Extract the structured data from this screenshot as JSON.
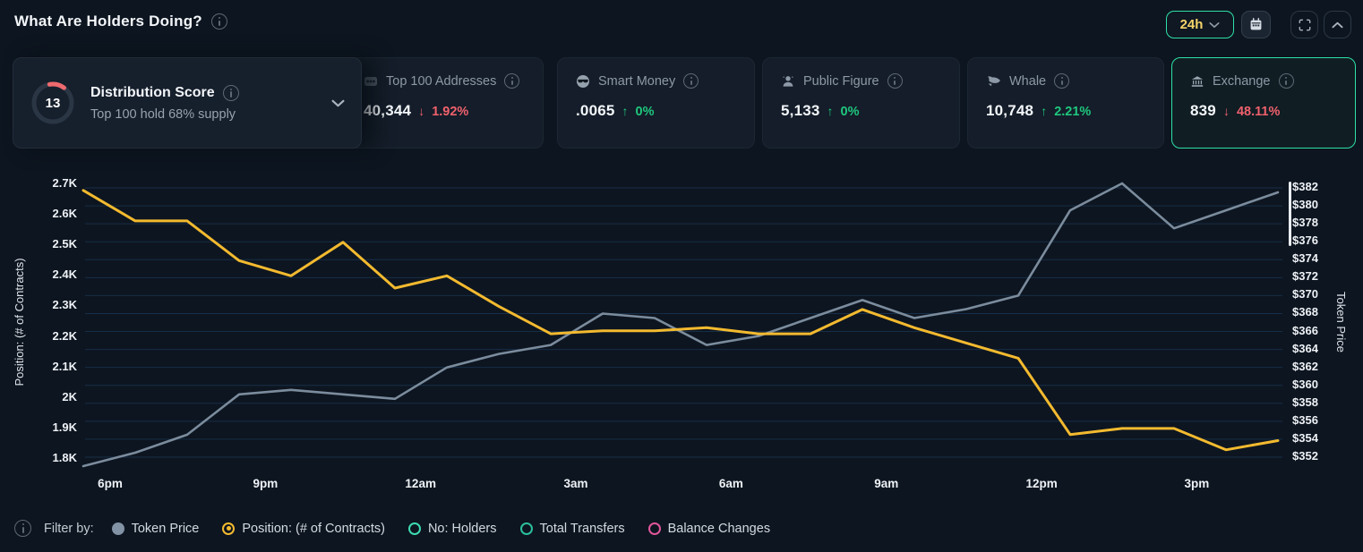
{
  "header": {
    "title": "What Are Holders Doing?",
    "range_value": "24h"
  },
  "cards": {
    "distribution": {
      "score": "13",
      "title": "Distribution Score",
      "subtitle": "Top 100 hold 68% supply",
      "gauge_arc_color": "#ee6a6e",
      "gauge_track_color": "#2b3645"
    },
    "stats": [
      {
        "label": "Top 100 Addresses",
        "value": "40,344",
        "change": "1.92%",
        "direction": "down",
        "icon": "badge-100-icon",
        "selected": false
      },
      {
        "label": "Smart Money",
        "value": ".0065",
        "change": "0%",
        "direction": "up",
        "icon": "sunglasses-face-icon",
        "selected": false
      },
      {
        "label": "Public Figure",
        "value": "5,133",
        "change": "0%",
        "direction": "up",
        "icon": "person-icon",
        "selected": false
      },
      {
        "label": "Whale",
        "value": "10,748",
        "change": "2.21%",
        "direction": "up",
        "icon": "whale-icon",
        "selected": false
      },
      {
        "label": "Exchange",
        "value": "839",
        "change": "48.11%",
        "direction": "down",
        "icon": "bank-icon",
        "selected": true
      }
    ]
  },
  "chart_data": {
    "type": "line",
    "x_tick_labels": [
      "6pm",
      "9pm",
      "12am",
      "3am",
      "6am",
      "9am",
      "12pm",
      "3pm"
    ],
    "left_axis": {
      "label": "Position: (# of Contracts)",
      "ticks": [
        "2.7K",
        "2.6K",
        "2.5K",
        "2.4K",
        "2.3K",
        "2.2K",
        "2.1K",
        "2K",
        "1.9K",
        "1.8K"
      ],
      "min": 1800,
      "max": 2700
    },
    "right_axis": {
      "label": "Token Price",
      "ticks": [
        "$382",
        "$380",
        "$378",
        "$376",
        "$374",
        "$372",
        "$370",
        "$368",
        "$366",
        "$364",
        "$362",
        "$360",
        "$358",
        "$356",
        "$354",
        "$352"
      ],
      "min": 352,
      "max": 382
    },
    "grid": true,
    "legend_position": "bottom",
    "series": [
      {
        "name": "Position: (# of Contracts)",
        "axis": "left",
        "color": "#f3ba2f",
        "values": [
          2680,
          2580,
          2580,
          2450,
          2400,
          2510,
          2360,
          2400,
          2300,
          2210,
          2220,
          2220,
          2230,
          2210,
          2210,
          2290,
          2230,
          2180,
          2130,
          1880,
          1900,
          1900,
          1830,
          1860
        ]
      },
      {
        "name": "Token Price",
        "axis": "right",
        "color": "#7b8c9d",
        "values": [
          351,
          352.5,
          354.5,
          359,
          359.5,
          359,
          358.5,
          362,
          363.5,
          364.5,
          368,
          367.5,
          364.5,
          365.5,
          367.5,
          369.5,
          367.5,
          368.5,
          370,
          379.5,
          382.5,
          377.5,
          379.5,
          381.5
        ]
      }
    ]
  },
  "filters": {
    "label": "Filter by:",
    "items": [
      {
        "label": "Token Price",
        "style": "filled",
        "color": "#8293a5"
      },
      {
        "label": "Position: (# of Contracts)",
        "style": "radio-selected",
        "color": "#f3ba2f"
      },
      {
        "label": "No: Holders",
        "style": "hollow",
        "color": "#3ddbb0"
      },
      {
        "label": "Total Transfers",
        "style": "hollow",
        "color": "#2bbf9e"
      },
      {
        "label": "Balance Changes",
        "style": "hollow",
        "color": "#e0569a"
      }
    ]
  },
  "colors": {
    "positive": "#1fc77e",
    "negative": "#f0616d",
    "accent_teal": "#2ee0a6",
    "accent_yellow": "#f3ba2f",
    "gridline": "#1f4368"
  }
}
